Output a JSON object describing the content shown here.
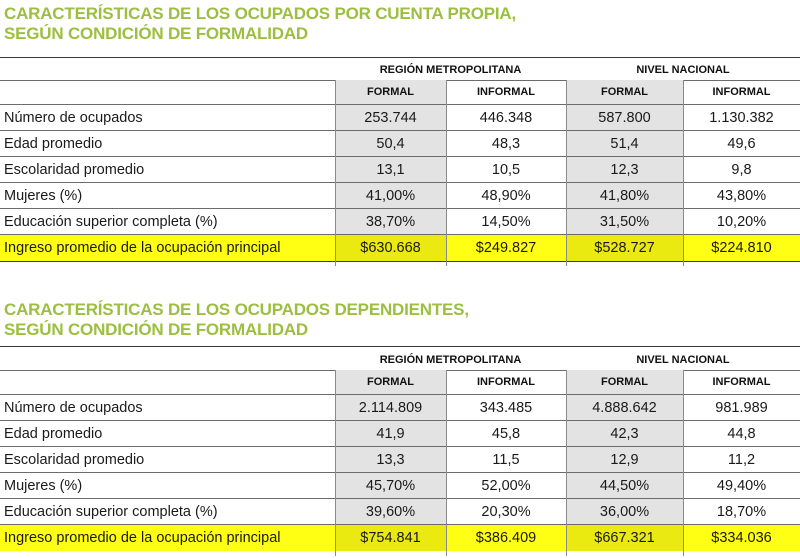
{
  "tables": [
    {
      "title_line1": "CARACTERÍSTICAS DE LOS OCUPADOS POR CUENTA PROPIA,",
      "title_line2": "SEGÚN CONDICIÓN DE FORMALIDAD",
      "group_rm": "REGIÓN METROPOLITANA",
      "group_nn": "NIVEL NACIONAL",
      "col_formal": "FORMAL",
      "col_informal": "INFORMAL",
      "rows": [
        {
          "label": "Número de ocupados",
          "rm_formal": "253.744",
          "rm_informal": "446.348",
          "nn_formal": "587.800",
          "nn_informal": "1.130.382"
        },
        {
          "label": "Edad promedio",
          "rm_formal": "50,4",
          "rm_informal": "48,3",
          "nn_formal": "51,4",
          "nn_informal": "49,6"
        },
        {
          "label": "Escolaridad promedio",
          "rm_formal": "13,1",
          "rm_informal": "10,5",
          "nn_formal": "12,3",
          "nn_informal": "9,8"
        },
        {
          "label": "Mujeres (%)",
          "rm_formal": "41,00%",
          "rm_informal": "48,90%",
          "nn_formal": "41,80%",
          "nn_informal": "43,80%"
        },
        {
          "label": "Educación superior completa (%)",
          "rm_formal": "38,70%",
          "rm_informal": "14,50%",
          "nn_formal": "31,50%",
          "nn_informal": "10,20%"
        },
        {
          "label": "Ingreso promedio de la ocupación principal",
          "rm_formal": "$630.668",
          "rm_informal": "$249.827",
          "nn_formal": "$528.727",
          "nn_informal": "$224.810"
        }
      ]
    },
    {
      "title_line1": "CARACTERÍSTICAS DE LOS OCUPADOS DEPENDIENTES,",
      "title_line2": "SEGÚN CONDICIÓN DE FORMALIDAD",
      "group_rm": "REGIÓN METROPOLITANA",
      "group_nn": "NIVEL NACIONAL",
      "col_formal": "FORMAL",
      "col_informal": "INFORMAL",
      "rows": [
        {
          "label": "Número de ocupados",
          "rm_formal": "2.114.809",
          "rm_informal": "343.485",
          "nn_formal": "4.888.642",
          "nn_informal": "981.989"
        },
        {
          "label": "Edad promedio",
          "rm_formal": "41,9",
          "rm_informal": "45,8",
          "nn_formal": "42,3",
          "nn_informal": "44,8"
        },
        {
          "label": "Escolaridad promedio",
          "rm_formal": "13,3",
          "rm_informal": "11,5",
          "nn_formal": "12,9",
          "nn_informal": "11,2"
        },
        {
          "label": "Mujeres (%)",
          "rm_formal": "45,70%",
          "rm_informal": "52,00%",
          "nn_formal": "44,50%",
          "nn_informal": "49,40%"
        },
        {
          "label": "Educación superior completa (%)",
          "rm_formal": "39,60%",
          "rm_informal": "20,30%",
          "nn_formal": "36,00%",
          "nn_informal": "18,70%"
        },
        {
          "label": "Ingreso promedio de la ocupación principal",
          "rm_formal": "$754.841",
          "rm_informal": "$386.409",
          "nn_formal": "$667.321",
          "nn_informal": "$334.036"
        }
      ]
    }
  ],
  "colors": {
    "title": "#9dbf3f",
    "highlight": "#ffff14",
    "shade": "#e3e3e3"
  }
}
